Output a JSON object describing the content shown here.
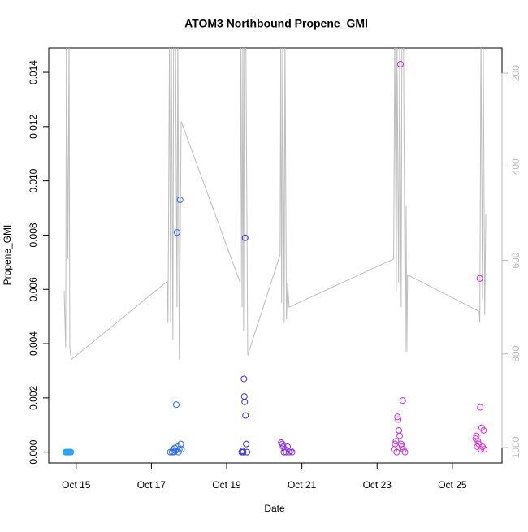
{
  "chart_data": {
    "type": "scatter",
    "title": "ATOM3 Northbound Propene_GMI",
    "x_label": "Date",
    "y_label": "Propene_GMI",
    "x": [
      14.72,
      14.74,
      14.76,
      14.78,
      14.8,
      14.82,
      14.84,
      14.86,
      17.5,
      17.55,
      17.58,
      17.6,
      17.62,
      17.64,
      17.66,
      17.68,
      17.7,
      17.72,
      17.74,
      17.76,
      17.78,
      17.8,
      19.4,
      19.42,
      19.44,
      19.46,
      19.47,
      19.48,
      19.49,
      19.5,
      19.52,
      19.54,
      20.45,
      20.48,
      20.5,
      20.52,
      20.55,
      20.58,
      20.62,
      20.66,
      20.7,
      20.74,
      23.45,
      23.48,
      23.5,
      23.52,
      23.54,
      23.56,
      23.58,
      23.6,
      23.62,
      23.64,
      23.66,
      23.68,
      23.7,
      23.74,
      25.62,
      25.64,
      25.66,
      25.68,
      25.7,
      25.73,
      25.74,
      25.76,
      25.78,
      25.8,
      25.83,
      25.85
    ],
    "values": [
      0,
      0,
      0,
      0,
      0,
      0,
      0,
      0,
      0,
      0,
      0.0001,
      0,
      0.00015,
      5e-05,
      0.00175,
      0.0081,
      0.0002,
      0,
      0.0001,
      0.0093,
      0.0003,
      0.0001,
      0,
      5e-05,
      0,
      0.0027,
      0.00205,
      0.00185,
      0.0079,
      0.00135,
      0.0003,
      0,
      0.00035,
      0.0003,
      0.0002,
      0,
      0.0001,
      0,
      0.0002,
      0,
      5e-05,
      0,
      0.0001,
      0.0003,
      0.0004,
      0,
      0.0013,
      0.0012,
      0.0008,
      0.0006,
      0.0143,
      0.0003,
      0.0002,
      0.0019,
      0.0001,
      0,
      0.0005,
      0.0006,
      0.0002,
      0.0004,
      0.0003,
      0.0064,
      0.00165,
      0.0001,
      0.0009,
      0.0002,
      0.0008,
      0.0001
    ],
    "colors": [
      "#1ea5f5",
      "#1ea5f5",
      "#1ea5f5",
      "#1ea5f5",
      "#1ea5f5",
      "#1ea5f5",
      "#1ea5f5",
      "#1ea5f5",
      "#2d6cf0",
      "#2d6cf0",
      "#2d6cf0",
      "#2d6cf0",
      "#2d6cf0",
      "#2d6cf0",
      "#2d6cf0",
      "#2d6cf0",
      "#2d6cf0",
      "#2d6cf0",
      "#2d6cf0",
      "#2d6cf0",
      "#2d6cf0",
      "#2d6cf0",
      "#3b2ef0",
      "#3b2ef0",
      "#3b2ef0",
      "#3b2ef0",
      "#3b2ef0",
      "#3b2ef0",
      "#3b2ef0",
      "#3b2ef0",
      "#3b2ef0",
      "#3b2ef0",
      "#8a2ee8",
      "#8a2ee8",
      "#8a2ee8",
      "#8a2ee8",
      "#8a2ee8",
      "#8a2ee8",
      "#8a2ee8",
      "#8a2ee8",
      "#8a2ee8",
      "#8a2ee8",
      "#cc2ee6",
      "#cc2ee6",
      "#cc2ee6",
      "#cc2ee6",
      "#cc2ee6",
      "#cc2ee6",
      "#cc2ee6",
      "#cc2ee6",
      "#cc2ee6",
      "#cc2ee6",
      "#cc2ee6",
      "#cc2ee6",
      "#cc2ee6",
      "#cc2ee6",
      "#e82ed8",
      "#e82ed8",
      "#e82ed8",
      "#e82ed8",
      "#e82ed8",
      "#e82ed8",
      "#e82ed8",
      "#e82ed8",
      "#e82ed8",
      "#e82ed8",
      "#e82ed8",
      "#e82ed8"
    ],
    "xlim": [
      14.27,
      26.32
    ],
    "xticks": [
      {
        "value": 15,
        "label": "Oct 15"
      },
      {
        "value": 17,
        "label": "Oct 17"
      },
      {
        "value": 19,
        "label": "Oct 19"
      },
      {
        "value": 21,
        "label": "Oct 21"
      },
      {
        "value": 23,
        "label": "Oct 23"
      },
      {
        "value": 25,
        "label": "Oct 25"
      }
    ],
    "ylim": [
      -0.0004,
      0.0149
    ],
    "yticks": [
      {
        "value": 0,
        "label": "0.000"
      },
      {
        "value": 0.002,
        "label": "0.002"
      },
      {
        "value": 0.004,
        "label": "0.004"
      },
      {
        "value": 0.006,
        "label": "0.006"
      },
      {
        "value": 0.008,
        "label": "0.008"
      },
      {
        "value": 0.01,
        "label": "0.010"
      },
      {
        "value": 0.012,
        "label": "0.012"
      },
      {
        "value": 0.014,
        "label": "0.014"
      }
    ],
    "y2lim": [
      1033,
      146
    ],
    "y2ticks": [
      200,
      400,
      600,
      800,
      1000
    ],
    "series": [
      {
        "color": "#bdbdbd",
        "axis": "y2",
        "x": [
          14.68,
          14.72,
          14.74,
          14.78,
          14.81,
          14.83,
          14.87,
          17.42,
          17.44,
          17.46,
          17.48,
          17.51,
          17.53,
          17.57,
          17.59,
          17.64,
          17.68,
          17.7,
          17.74,
          17.79,
          19.36,
          19.38,
          19.41,
          19.43,
          19.45,
          19.47,
          19.51,
          19.56,
          20.42,
          20.44,
          20.46,
          20.49,
          20.53,
          20.55,
          20.59,
          20.62,
          20.66,
          23.44,
          23.47,
          23.51,
          23.53,
          23.57,
          23.6,
          23.64,
          23.66,
          23.7,
          23.75,
          23.77,
          23.79,
          23.81,
          25.71,
          25.73,
          25.76,
          25.8,
          25.82,
          25.86,
          25.89
        ],
        "values": [
          665,
          786,
          120,
          597,
          120,
          786,
          812,
          645,
          734,
          459,
          120,
          734,
          120,
          769,
          120,
          120,
          700,
          120,
          812,
          303,
          648,
          120,
          700,
          120,
          752,
          120,
          120,
          803,
          588,
          120,
          691,
          120,
          734,
          120,
          726,
          648,
          700,
          597,
          120,
          665,
          120,
          648,
          120,
          700,
          120,
          120,
          795,
          484,
          795,
          631,
          709,
          733,
          120,
          683,
          120,
          717,
          502
        ]
      }
    ]
  }
}
